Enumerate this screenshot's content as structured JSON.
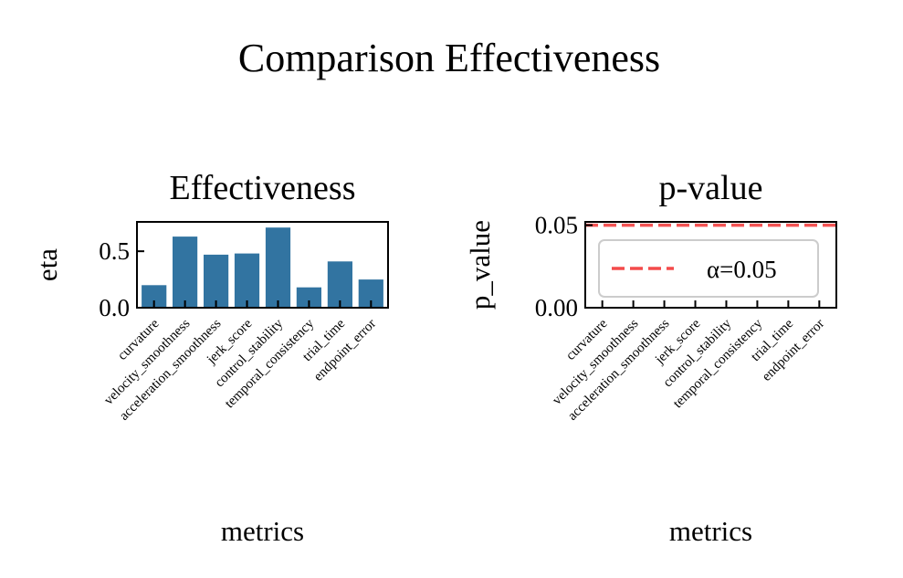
{
  "figure": {
    "title": "Comparison Effectiveness"
  },
  "chart_data": [
    {
      "type": "bar",
      "title": "Effectiveness",
      "xlabel": "metrics",
      "ylabel": "eta",
      "categories": [
        "curvature",
        "velocity_smoothness",
        "acceleration_smoothness",
        "jerk_score",
        "control_stability",
        "temporal_consistency",
        "trial_time",
        "endpoint_error"
      ],
      "values": [
        0.2,
        0.63,
        0.47,
        0.48,
        0.71,
        0.18,
        0.41,
        0.25
      ],
      "ylim": [
        0,
        0.76
      ],
      "yticks": [
        0.0,
        0.5
      ],
      "ytick_labels": [
        "0.0",
        "0.5"
      ],
      "bar_color": "#3274a1",
      "grid": false
    },
    {
      "type": "bar",
      "title": "p-value",
      "xlabel": "metrics",
      "ylabel": "p_value",
      "categories": [
        "curvature",
        "velocity_smoothness",
        "acceleration_smoothness",
        "jerk_score",
        "control_stability",
        "temporal_consistency",
        "trial_time",
        "endpoint_error"
      ],
      "values": [
        0,
        0,
        0,
        0,
        0,
        0,
        0,
        0
      ],
      "ylim": [
        0,
        0.052
      ],
      "yticks": [
        0.0,
        0.05
      ],
      "ytick_labels": [
        "0.00",
        "0.05"
      ],
      "reference_line": {
        "y": 0.05,
        "label": "α=0.05",
        "color": "#f44b4b",
        "style": "dashed"
      },
      "legend": "upper-right",
      "grid": false
    }
  ]
}
